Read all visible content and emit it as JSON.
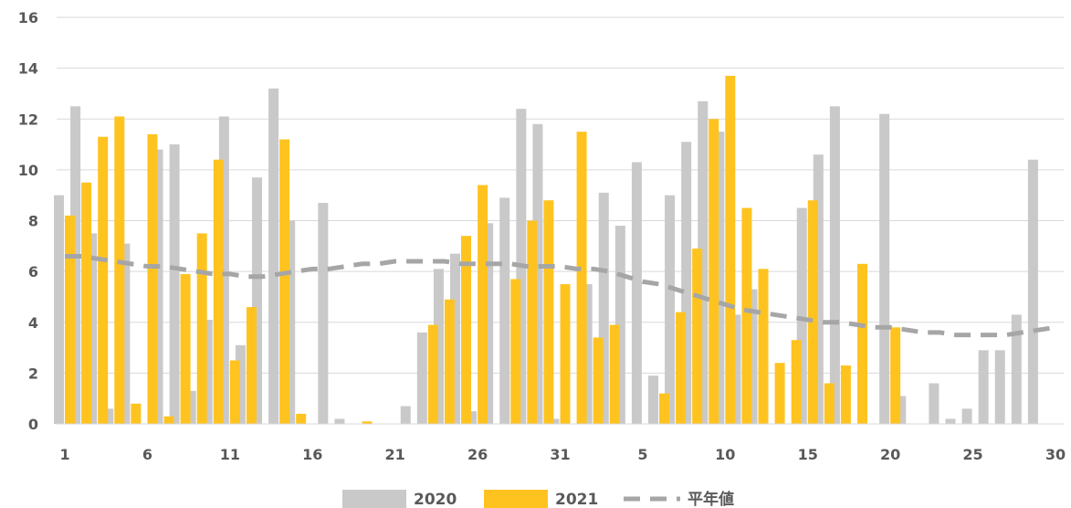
{
  "chart_data": {
    "type": "bar",
    "title": "",
    "xlabel": "",
    "ylabel": "",
    "ylim": [
      0,
      16
    ],
    "yticks": [
      0,
      2,
      4,
      6,
      8,
      10,
      12,
      14,
      16
    ],
    "grid": true,
    "legend_position": "bottom",
    "x": [
      1,
      2,
      3,
      4,
      5,
      6,
      7,
      8,
      9,
      10,
      11,
      12,
      13,
      14,
      15,
      16,
      17,
      18,
      19,
      20,
      21,
      22,
      23,
      24,
      25,
      26,
      27,
      28,
      29,
      30,
      31,
      1,
      2,
      3,
      4,
      5,
      6,
      7,
      8,
      9,
      10,
      11,
      12,
      13,
      14,
      15,
      16,
      17,
      18,
      19,
      20,
      21,
      22,
      23,
      24,
      25,
      26,
      27,
      28,
      29,
      30
    ],
    "x_tick_labels": [
      "1",
      "6",
      "11",
      "16",
      "21",
      "26",
      "31",
      "5",
      "10",
      "15",
      "20",
      "25",
      "30"
    ],
    "x_tick_indices": [
      0,
      5,
      10,
      15,
      20,
      25,
      30,
      35,
      40,
      45,
      50,
      55,
      60
    ],
    "series": [
      {
        "name": "2020",
        "kind": "bar",
        "color": "#c9c9c9",
        "values": [
          9.0,
          12.5,
          7.5,
          0.6,
          7.1,
          0.0,
          10.8,
          11.0,
          1.3,
          4.1,
          12.1,
          3.1,
          9.7,
          13.2,
          8.0,
          0.0,
          8.7,
          0.2,
          0.0,
          0.0,
          0.0,
          0.7,
          3.6,
          6.1,
          6.7,
          0.5,
          7.9,
          8.9,
          12.4,
          11.8,
          0.2,
          0.0,
          5.5,
          9.1,
          7.8,
          10.3,
          1.9,
          9.0,
          11.1,
          12.7,
          11.5,
          4.3,
          5.3,
          0.0,
          0.0,
          8.5,
          10.6,
          12.5,
          0.0,
          0.0,
          12.2,
          1.1,
          0.0,
          1.6,
          0.2,
          0.6,
          2.9,
          2.9,
          4.3,
          10.4,
          0.0
        ]
      },
      {
        "name": "2021",
        "kind": "bar",
        "color": "#ffc320",
        "values": [
          8.2,
          9.5,
          11.3,
          12.1,
          0.8,
          11.4,
          0.3,
          5.9,
          7.5,
          10.4,
          2.5,
          4.6,
          0.0,
          11.2,
          0.4,
          0.0,
          0.0,
          0.0,
          0.1,
          0.0,
          0.0,
          0.0,
          3.9,
          4.9,
          7.4,
          9.4,
          0.0,
          5.7,
          8.0,
          8.8,
          5.5,
          11.5,
          3.4,
          3.9,
          0.0,
          0.0,
          1.2,
          4.4,
          6.9,
          12.0,
          13.7,
          8.5,
          6.1,
          2.4,
          3.3,
          8.8,
          1.6,
          2.3,
          6.3,
          0.0,
          3.8,
          0.0,
          0.0,
          0.0,
          0.0,
          0.0,
          0.0,
          0.0,
          0.0,
          0.0,
          0.0
        ]
      },
      {
        "name": "平年値",
        "kind": "line",
        "style": "dashed",
        "color": "#a6a6a6",
        "values": [
          6.6,
          6.6,
          6.5,
          6.4,
          6.3,
          6.2,
          6.2,
          6.1,
          6.0,
          5.9,
          5.9,
          5.8,
          5.8,
          5.9,
          6.0,
          6.1,
          6.1,
          6.2,
          6.3,
          6.3,
          6.4,
          6.4,
          6.4,
          6.4,
          6.3,
          6.3,
          6.3,
          6.3,
          6.2,
          6.2,
          6.2,
          6.1,
          6.1,
          6.0,
          5.8,
          5.6,
          5.5,
          5.3,
          5.1,
          4.9,
          4.7,
          4.5,
          4.4,
          4.3,
          4.2,
          4.1,
          4.0,
          4.0,
          3.9,
          3.8,
          3.8,
          3.7,
          3.6,
          3.6,
          3.5,
          3.5,
          3.5,
          3.5,
          3.6,
          3.7,
          3.8
        ]
      }
    ]
  }
}
